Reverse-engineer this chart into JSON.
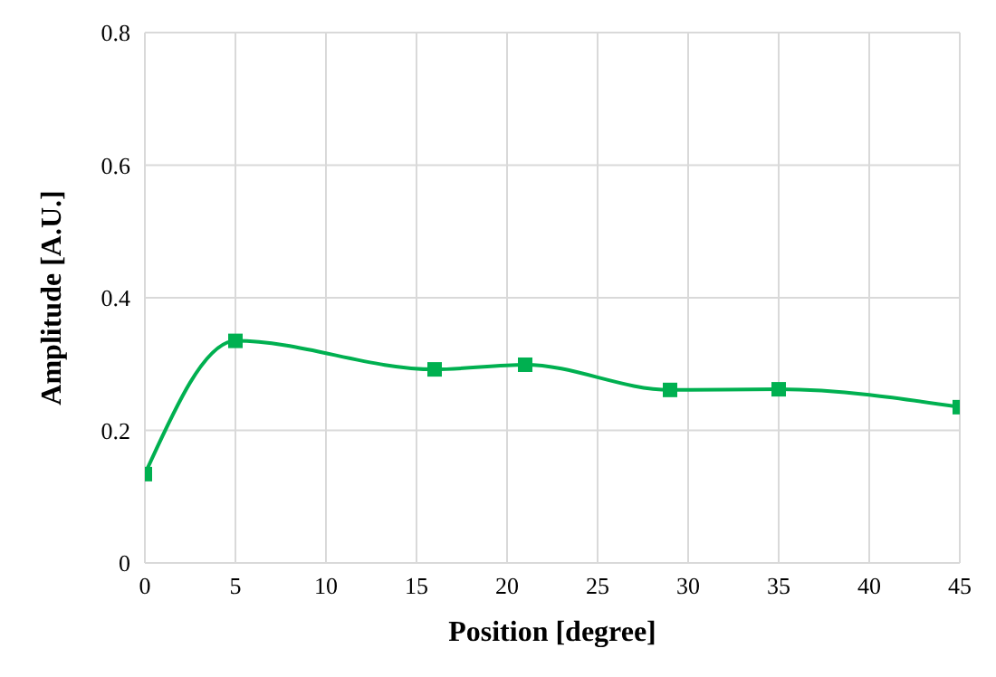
{
  "chart_data": {
    "type": "line",
    "xlabel": "Position [degree]",
    "ylabel": "Amplitude [A.U.]",
    "x": [
      0,
      5,
      16,
      21,
      29,
      35,
      45
    ],
    "series": [
      {
        "color": "#00b050",
        "values": [
          0.134,
          0.335,
          0.292,
          0.299,
          0.261,
          0.262,
          0.235
        ]
      }
    ],
    "xlim": [
      0,
      45
    ],
    "xticks": [
      0,
      5,
      10,
      15,
      20,
      25,
      30,
      35,
      40,
      45
    ],
    "ylim": [
      0,
      0.8
    ],
    "yticks": [
      0,
      0.2,
      0.4,
      0.6,
      0.8
    ],
    "grid": true,
    "marker": "square",
    "line_style": "solid",
    "legend": false
  }
}
